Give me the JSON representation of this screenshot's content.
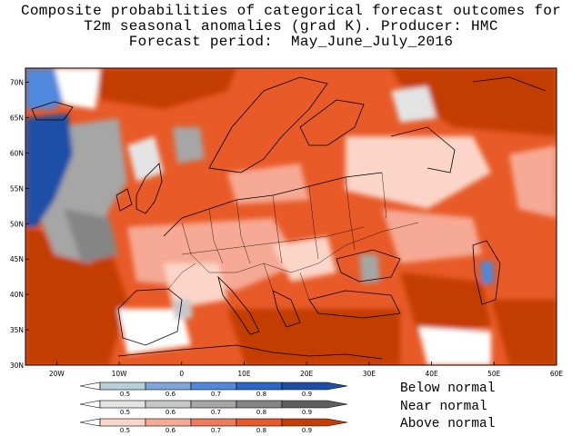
{
  "title": {
    "line1": "Composite probabilities of categorical forecast outcomes for",
    "line2": "T2m seasonal anomalies (grad K). Producer: HMC",
    "line3": "Forecast period:  May_June_July_2016"
  },
  "map": {
    "lon_range": [
      -25,
      60
    ],
    "lat_range": [
      30,
      72
    ],
    "lon_labels": [
      "20W",
      "10W",
      "0",
      "10E",
      "20E",
      "30E",
      "40E",
      "50E",
      "60E"
    ],
    "lat_labels": [
      "30N",
      "35N",
      "40N",
      "45N",
      "50N",
      "55N",
      "60N",
      "65N",
      "70N"
    ]
  },
  "legend": {
    "ticks": [
      "0.5",
      "0.6",
      "0.7",
      "0.8",
      "0.9"
    ],
    "categories": [
      {
        "label": "Below normal",
        "colors": [
          "#b7cfd8",
          "#7ea6dd",
          "#4f88dc",
          "#2b66c8",
          "#1e4fa5"
        ]
      },
      {
        "label": "Near normal",
        "colors": [
          "#e4e4e4",
          "#c7c7c7",
          "#a6a6a6",
          "#858585",
          "#5e5e5e"
        ]
      },
      {
        "label": "Above normal",
        "colors": [
          "#fbd5c8",
          "#f6a994",
          "#ef7a5c",
          "#e85a28",
          "#c43d06"
        ]
      }
    ]
  }
}
